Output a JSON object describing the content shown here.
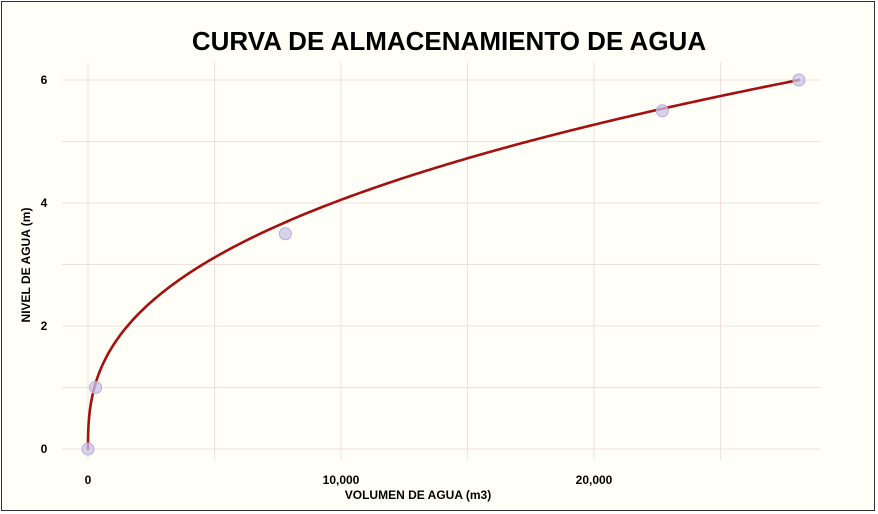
{
  "chart_data": {
    "type": "line",
    "title": "CURVA DE ALMACENAMIENTO DE AGUA",
    "xlabel": "VOLUMEN DE AGUA (m3)",
    "ylabel": "NIVEL DE AGUA (m)",
    "xlim": [
      0,
      29000
    ],
    "ylim": [
      -0.1,
      6.3
    ],
    "x_ticks": [
      {
        "value": 0,
        "label": "0"
      },
      {
        "value": 10000,
        "label": "10,000"
      },
      {
        "value": 20000,
        "label": "20,000"
      }
    ],
    "y_ticks": [
      {
        "value": 0,
        "label": "0"
      },
      {
        "value": 2,
        "label": "2"
      },
      {
        "value": 4,
        "label": "4"
      },
      {
        "value": 6,
        "label": "6"
      }
    ],
    "x_gridlines": [
      0,
      5000,
      10000,
      15000,
      20000,
      25000
    ],
    "y_gridlines": [
      0,
      1,
      2,
      3,
      4,
      5,
      6
    ],
    "grid": true,
    "legend": "none",
    "series": [
      {
        "points": [
          {
            "x": 0,
            "y": 0
          },
          {
            "x": 300,
            "y": 1.0
          },
          {
            "x": 7800,
            "y": 3.5
          },
          {
            "x": 22700,
            "y": 5.5
          },
          {
            "x": 28100,
            "y": 6.0
          }
        ],
        "fit": "power",
        "fit_exponent": 0.38,
        "line_color": "#a40f0f",
        "marker_color": "#c9c4ea"
      }
    ]
  }
}
